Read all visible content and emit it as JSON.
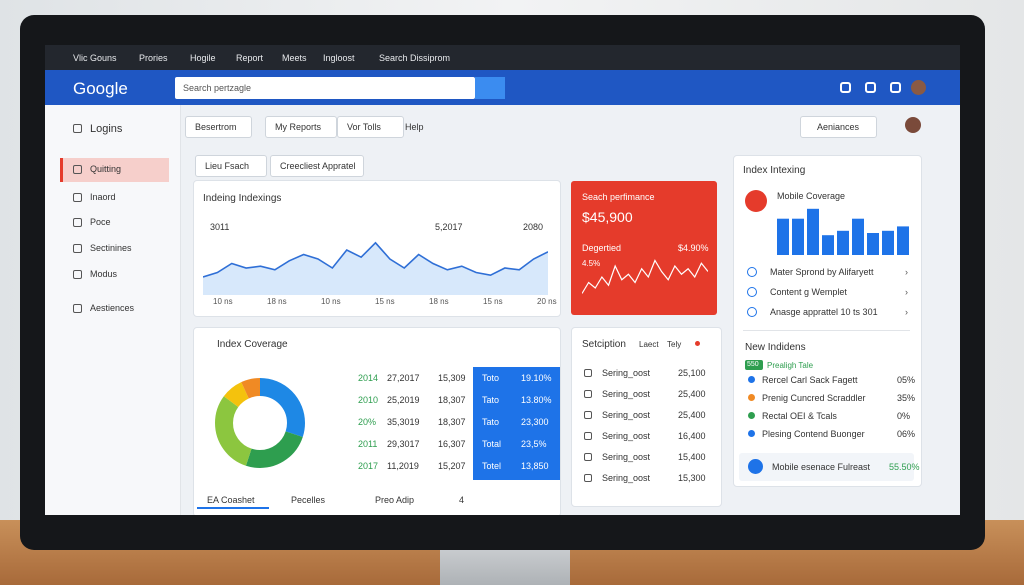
{
  "titlebar": {
    "tabs": [
      "Vlic Gouns",
      "Prories",
      "Hogile",
      "Report",
      "Meets",
      "Ingloost",
      "Search Dissiprom"
    ]
  },
  "header": {
    "logo": "Google",
    "search_placeholder": "Search pertzagle"
  },
  "sidebar": {
    "items": [
      "Logins",
      "Quitting",
      "Inaord",
      "Poce",
      "Sectinines",
      "Modus",
      "Aestiences"
    ]
  },
  "toolbar": {
    "buttons": [
      "Besertrom",
      "My Reports",
      "Vor Tolls",
      "Help"
    ],
    "right": "Aeniances"
  },
  "breadcrumb": [
    "Lieu Fsach",
    "Creecliest Appratel"
  ],
  "indexing": {
    "title": "Indeing Indexings",
    "labels": [
      "3011",
      "5,2017",
      "2080"
    ],
    "x_labels": [
      "10 ns",
      "18 ns",
      "10 ns",
      "15 ns",
      "18 ns",
      "15 ns",
      "20 ns"
    ],
    "values": [
      20,
      25,
      35,
      30,
      32,
      28,
      38,
      45,
      40,
      30,
      50,
      42,
      58,
      40,
      30,
      45,
      35,
      28,
      32,
      25,
      22,
      30,
      28,
      40,
      48
    ]
  },
  "performance": {
    "title": "Seach perfimance",
    "amount": "$45,900",
    "label": "Degertied",
    "change": "$4.90%",
    "rate": "4.5%",
    "values": [
      10,
      30,
      20,
      40,
      25,
      60,
      35,
      45,
      30,
      55,
      40,
      70,
      50,
      35,
      60,
      45,
      55,
      40,
      65,
      50
    ]
  },
  "index_intexing": {
    "title": "Index Intexing",
    "subtitle": "Mobile Coverage",
    "bars": [
      33,
      33,
      42,
      18,
      22,
      33,
      20,
      22,
      26
    ],
    "links": [
      "Mater Sprond by Alifaryett",
      "Content g Wemplet",
      "Anasge apprattel 10 ts 301"
    ]
  },
  "coverage": {
    "title": "Index Coverage",
    "donut": {
      "values": [
        30,
        25,
        30,
        8,
        7
      ],
      "colors": [
        "#1e88e5",
        "#2e9e4f",
        "#8cc63f",
        "#f4c20d",
        "#f08a24"
      ]
    },
    "rows": [
      [
        "2014",
        "27,2017",
        "15,309",
        "Toto",
        "19.10%"
      ],
      [
        "2010",
        "25,2019",
        "18,307",
        "Tato",
        "13.80%"
      ],
      [
        "20%",
        "35,3019",
        "18,307",
        "Tato",
        "23,300"
      ],
      [
        "2011",
        "29,3017",
        "16,307",
        "Total",
        "23,5%"
      ],
      [
        "2017",
        "11,2019",
        "15,207",
        "Totel",
        "13,850"
      ]
    ],
    "tabs": [
      "EA Coashet",
      "Pecelles",
      "Preo Adip",
      "4"
    ]
  },
  "setciption": {
    "title": "Setciption",
    "filters": [
      "Laect",
      "Tely"
    ],
    "rows": [
      [
        "Sering_oost",
        "25,100"
      ],
      [
        "Sering_oost",
        "25,400"
      ],
      [
        "Sering_oost",
        "25,400"
      ],
      [
        "Sering_oost",
        "16,400"
      ],
      [
        "Sering_oost",
        "15,400"
      ],
      [
        "Sering_oost",
        "15,300"
      ]
    ]
  },
  "new_indidens": {
    "title": "New Indidens",
    "badge": "550",
    "badge_label": "Prealigh Tale",
    "rows": [
      [
        "Rercel Carl Sack Fagett",
        "05%"
      ],
      [
        "Prenig Cuncred Scraddler",
        "35%"
      ],
      [
        "Rectal OEI & Tcals",
        "0%"
      ],
      [
        "Plesing Contend Buonger",
        "06%"
      ]
    ],
    "footer": "Mobile esenace Fulreast",
    "footer_value": "55.50%"
  }
}
